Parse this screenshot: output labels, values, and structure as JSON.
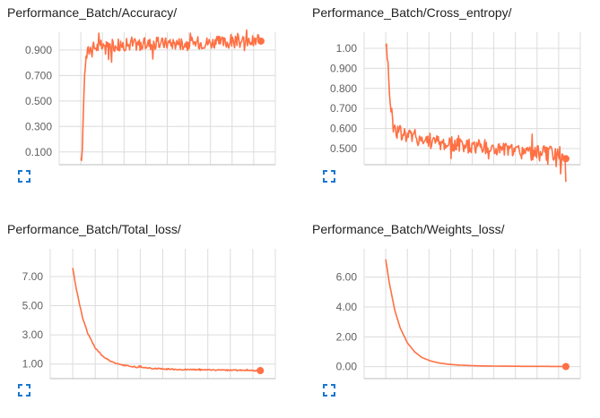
{
  "colors": {
    "series": "#ff7043",
    "grid": "#dcdcdc",
    "axis": "#bdbdbd",
    "tick_text": "#616161",
    "expand_icon": "#1976d2"
  },
  "icons": {
    "expand": "fullscreen-icon"
  },
  "chart_data": [
    {
      "type": "line",
      "title": "Performance_Batch/Accuracy/",
      "yticks": [
        0.1,
        0.3,
        0.5,
        0.7,
        0.9
      ],
      "ytick_labels": [
        "0.100",
        "0.300",
        "0.500",
        "0.700",
        "0.900"
      ],
      "ylim": [
        0.0,
        1.04
      ],
      "xlim": [
        -0.12,
        1.08
      ],
      "grid": true,
      "noise": 0.05,
      "series": [
        {
          "x": [
            0.0,
            0.01,
            0.015,
            0.02,
            0.03,
            0.04,
            0.06,
            0.09,
            0.12,
            0.16,
            0.2,
            0.3,
            0.4,
            0.5,
            0.6,
            0.7,
            0.8,
            0.9,
            1.0
          ],
          "values": [
            0.1,
            0.14,
            0.5,
            0.72,
            0.84,
            0.89,
            0.92,
            0.925,
            0.93,
            0.935,
            0.94,
            0.945,
            0.95,
            0.955,
            0.955,
            0.96,
            0.96,
            0.965,
            0.97
          ]
        }
      ]
    },
    {
      "type": "line",
      "title": "Performance_Batch/Cross_entropy/",
      "yticks": [
        0.5,
        0.6,
        0.7,
        0.8,
        0.9,
        1.0
      ],
      "ytick_labels": [
        "0.500",
        "0.600",
        "0.700",
        "0.800",
        "0.900",
        "1.00"
      ],
      "ylim": [
        0.42,
        1.08
      ],
      "xlim": [
        -0.12,
        1.08
      ],
      "grid": true,
      "noise": 0.04,
      "series": [
        {
          "x": [
            0.0,
            0.01,
            0.02,
            0.03,
            0.04,
            0.06,
            0.08,
            0.12,
            0.16,
            0.2,
            0.3,
            0.4,
            0.5,
            0.6,
            0.7,
            0.8,
            0.9,
            1.0
          ],
          "values": [
            1.04,
            0.95,
            0.8,
            0.7,
            0.62,
            0.59,
            0.58,
            0.57,
            0.56,
            0.55,
            0.53,
            0.52,
            0.51,
            0.5,
            0.49,
            0.48,
            0.475,
            0.45
          ]
        }
      ]
    },
    {
      "type": "line",
      "title": "Performance_Batch/Total_loss/",
      "yticks": [
        1.0,
        3.0,
        5.0,
        7.0
      ],
      "ytick_labels": [
        "1.00",
        "3.00",
        "5.00",
        "7.00"
      ],
      "ylim": [
        0.0,
        8.9
      ],
      "xlim": [
        -0.12,
        1.08
      ],
      "grid": true,
      "noise": 0.04,
      "series": [
        {
          "x": [
            0.0,
            0.02,
            0.05,
            0.08,
            0.12,
            0.16,
            0.2,
            0.25,
            0.3,
            0.35,
            0.4,
            0.5,
            0.6,
            0.7,
            0.8,
            0.9,
            1.0
          ],
          "values": [
            7.6,
            6.1,
            4.3,
            3.1,
            2.1,
            1.55,
            1.2,
            0.95,
            0.85,
            0.78,
            0.72,
            0.65,
            0.62,
            0.6,
            0.58,
            0.57,
            0.55
          ]
        }
      ]
    },
    {
      "type": "line",
      "title": "Performance_Batch/Weights_loss/",
      "yticks": [
        0.0,
        2.0,
        4.0,
        6.0
      ],
      "ytick_labels": [
        "0.00",
        "2.00",
        "4.00",
        "6.00"
      ],
      "ylim": [
        -0.8,
        7.9
      ],
      "xlim": [
        -0.12,
        1.08
      ],
      "grid": true,
      "noise": 0.0,
      "series": [
        {
          "x": [
            0.0,
            0.02,
            0.05,
            0.08,
            0.12,
            0.16,
            0.2,
            0.25,
            0.3,
            0.35,
            0.4,
            0.5,
            0.6,
            0.7,
            0.8,
            0.9,
            1.0
          ],
          "values": [
            7.2,
            5.6,
            3.8,
            2.6,
            1.6,
            1.0,
            0.62,
            0.38,
            0.24,
            0.16,
            0.11,
            0.06,
            0.04,
            0.03,
            0.02,
            0.02,
            0.01
          ]
        }
      ]
    }
  ]
}
